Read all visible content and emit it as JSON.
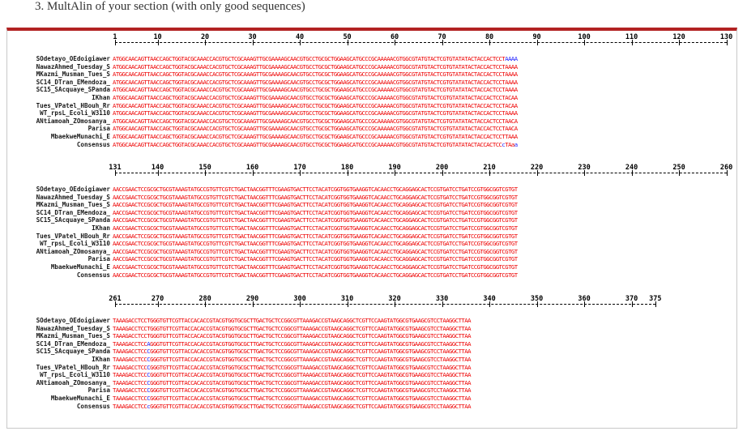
{
  "heading": "3.  MultAlin of your section (with only good sequences)",
  "colors": {
    "high_consensus": "#ee0000",
    "low_consensus": "#1a1aff",
    "border": "#b22222"
  },
  "sequence_names": [
    "SOdetayo_OEdoigiawer",
    "NawazAhmed_Tuesday_S",
    "MKazmi_Musman_Tues_S",
    "SC14_DTran_EMendoza_",
    "SC15_SAcquaye_SPanda",
    "IKhan",
    "Tues_VPatel_HBouh_Rr",
    "WT_rpsL_Ecoli_W3110",
    "ANtiamoah_ZOmosanya_",
    "Parisa",
    "MbaekweMunachi_E",
    "Consensus"
  ],
  "blocks": [
    {
      "ruler": [
        "1",
        "10",
        "20",
        "30",
        "40",
        "50",
        "60",
        "70",
        "80",
        "90",
        "100",
        "110",
        "120",
        "130"
      ],
      "rows": [
        [
          {
            "t": "ATGGCAACAGTTAACCAGCTGGTACGCAAACCACGTGCTCGCAAAGTTGCGAAAAGCAACGTGCCTGCGCTGGAAGCATGCCCGCAAAAACGTGGCGTATGTACTCGTGTATATACTACCACTCCT"
          },
          {
            "t": "AAAA",
            "b": 1
          }
        ],
        [
          {
            "t": "ATGGCAACAGTTAACCAGCTGGTACGCAAACCACGTGCTCGCAAAGTTGCGAAAAGCAACGTGCCTGCGCTGGAAGCATGCCCGCAAAAACGTGGCGTATGTACTCGTGTATATACTACCACTCCTAAAA"
          }
        ],
        [
          {
            "t": "ATGGCAACAGTTAACCAGCTGGTACGCAAACCACGTGCTCGCAAAGTTGCGAAAAGCAACGTGCCTGCGCTGGAAGCATGCCCGCAAAAACGTGGCGTATGTACTCGTGTATATACTACCACTCCTAAAA"
          }
        ],
        [
          {
            "t": "ATGGCAACAGTTAACCAGCTGGTACGCAAACCACGTGCTCGCAAAGTTGCGAAAAGCAACGTGCCTGCGCTGGAAGCATGCCCGCAAAAACGTGGCGTATGTACTCGTGTATATACTACCACTCCTAAAA"
          }
        ],
        [
          {
            "t": "ATGGCAACAGTTAACCAGCTGGTACGCAAACCACGTGCTCGCAAAGTTGCGAAAAGCAACGTGCCTGCGCTGGAAGCATGCCCGCAAAAACGTGGCGTATGTACTCGTGTATATACTACCACTCCTAAAA"
          }
        ],
        [
          {
            "t": "ATGGCAACAGTTAACCAGCTGGTACGCAAACCACGTGCTCGCAAAGTTGCGAAAAGCAACGTGCCTGCGCTGGAAGCATGCCCGCAAAAACGTGGCGTATGTACTCGTGTATATACTACCACTCCTACAA"
          }
        ],
        [
          {
            "t": "ATGGCAACAGTTAACCAGCTGGTACGCAAACCACGTGCTCGCAAAGTTGCGAAAAGCAACGTGCCTGCGCTGGAAGCATGCCCGCAAAAACGTGGCGTATGTACTCGTGTATATACTACCACTCCTACAA"
          }
        ],
        [
          {
            "t": "ATGGCAACAGTTAACCAGCTGGTACGCAAACCACGTGCTCGCAAAGTTGCGAAAAGCAACGTGCCTGCGCTGGAAGCATGCCCGCAAAAACGTGGCGTATGTACTCGTGTATATACTACCACTCCTAAAA"
          }
        ],
        [
          {
            "t": "ATGGCAACAGTTAACCAGCTGGTACGCAAACCACGTGCTCGCAAAGTTGCGAAAAGCAACGTGCCTGCGCTGGAAGCATGCCCGCAAAAACGTGGCGTATGTACTCGTGTATATACTACCACTCCTAACA"
          }
        ],
        [
          {
            "t": "ATGGCAACAGTTAACCAGCTGGTACGCAAACCACGTGCTCGCAAAGTTGCGAAAAGCAACGTGCCTGCGCTGGAAGCATGCCCGCAAAAACGTGGCGTATGTACTCGTGTATATACTACCACTCCTAACA"
          }
        ],
        [
          {
            "t": "ATGGCAACAGTTAACCAGCTGGTACGCAAACCACGTGCTCGCAAAGTTGCGAAAAGCAACGTGCCTGCGCTGGAAGCATGCCCGCAAAAACGTGGCGTATGTACTCGTGTATATACTACCACTCCTTAAA"
          }
        ],
        [
          {
            "t": "ATGGCAACAGTTAACCAGCTGGTACGCAAACCACGTGCTCGCAAAGTTGCGAAAAGCAACGTGCCTGCGCTGGAAGCATGCCCGCAAAAACGTGGCGTATGTACTCGTGTATATACTACCACTCC"
          },
          {
            "t": "c",
            "b": 1
          },
          {
            "t": "TAa",
            "b": 0
          },
          {
            "t": "a",
            "b": 1
          }
        ]
      ]
    },
    {
      "ruler": [
        "131",
        "140",
        "150",
        "160",
        "170",
        "180",
        "190",
        "200",
        "210",
        "220",
        "230",
        "240",
        "250",
        "260"
      ],
      "rows": [
        [
          {
            "t": "AACCGAACTCCGCGCTGCGTAAAGTATGCCGTGTTCGTCTGACTAACGGTTTCGAAGTGACTTCCTACATCGGTGGTGAAGGTCACAACCTGCAGGAGCACTCCGTGATCCTGATCCGTGGCGGTCGTGT"
          }
        ],
        [
          {
            "t": "AACCGAACTCCGCGCTGCGTAAAGTATGCCGTGTTCGTCTGACTAACGGTTTCGAAGTGACTTCCTACATCGGTGGTGAAGGTCACAACCTGCAGGAGCACTCCGTGATCCTGATCCGTGGCGGTCGTGT"
          }
        ],
        [
          {
            "t": "AACCGAACTCCGCGCTGCGTAAAGTATGCCGTGTTCGTCTGACTAACGGTTTCGAAGTGACTTCCTACATCGGTGGTGAAGGTCACAACCTGCAGGAGCACTCCGTGATCCTGATCCGTGGCGGTCGTGT"
          }
        ],
        [
          {
            "t": "AACCGAACTCCGCGCTGCGTAAAGTATGCCGTGTTCGTCTGACTAACGGTTTCGAAGTGACTTCCTACATCGGTGGTGAAGGTCACAACCTGCAGGAGCACTCCGTGATCCTGATCCGTGGCGGTCGTGT"
          }
        ],
        [
          {
            "t": "AACCGAACTCCGCGCTGCGTAAAGTATGCCGTGTTCGTCTGACTAACGGTTTCGAAGTGACTTCCTACATCGGTGGTGAAGGTCACAACCTGCAGGAGCACTCCGTGATCCTGATCCGTGGCGGTCGTGT"
          }
        ],
        [
          {
            "t": "AACCGAACTCCGCGCTGCGTAAAGTATGCCGTGTTCGTCTGACTAACGGTTTCGAAGTGACTTCCTACATCGGTGGTGAAGGTCACAACCTGCAGGAGCACTCCGTGATCCTGATCCGTGGCGGTCGTGT"
          }
        ],
        [
          {
            "t": "AACCGAACTCCGCGCTGCGTAAAGTATGCCGTGTTCGTCTGACTAACGGTTTCGAAGTGACTTCCTACATCGGTGGTGAAGGTCACAACCTGCAGGAGCACTCCGTGATCCTGATCCGTGGCGGTCGTGT"
          }
        ],
        [
          {
            "t": "AACCGAACTCCGCGCTGCGTAAAGTATGCCGTGTTCGTCTGACTAACGGTTTCGAAGTGACTTCCTACATCGGTGGTGAAGGTCACAACCTGCAGGAGCACTCCGTGATCCTGATCCGTGGCGGTCGTGT"
          }
        ],
        [
          {
            "t": "AACCGAACTCCGCGCTGCGTAAAGTATGCCGTGTTCGTCTGACTAACGGTTTCGAAGTGACTTCCTACATCGGTGGTGAAGGTCACAACCTGCAGGAGCACTCCGTGATCCTGATCCGTGGCGGTCGTGT"
          }
        ],
        [
          {
            "t": "AACCGAACTCCGCGCTGCGTAAAGTATGCCGTGTTCGTCTGACTAACGGTTTCGAAGTGACTTCCTACATCGGTGGTGAAGGTCACAACCTGCAGGAGCACTCCGTGATCCTGATCCGTGGCGGTCGTGT"
          }
        ],
        [
          {
            "t": "AACCGAACTCCGCGCTGCGTAAAGTATGCCGTGTTCGTCTGACTAACGGTTTCGAAGTGACTTCCTACATCGGTGGTGAAGGTCACAACCTGCAGGAGCACTCCGTGATCCTGATCCGTGGCGGTCGTGT"
          }
        ],
        [
          {
            "t": "AACCGAACTCCGCGCTGCGTAAAGTATGCCGTGTTCGTCTGACTAACGGTTTCGAAGTGACTTCCTACATCGGTGGTGAAGGTCACAACCTGCAGGAGCACTCCGTGATCCTGATCCGTGGCGGTCGTGT"
          }
        ]
      ]
    },
    {
      "ruler": [
        "261",
        "270",
        "280",
        "290",
        "300",
        "310",
        "320",
        "330",
        "340",
        "350",
        "360",
        "370",
        "375"
      ],
      "rows": [
        [
          {
            "t": "TAAAGACCTCCTGGGTGTTCGTTACCACACCGTACGTGGTGCGCTTGACTGCTCCGGCGTTAAAGACCGTAAGCAGGCTCGTTCCAAGTATGGCGTGAAGCGTCCTAAGGCTTAA"
          }
        ],
        [
          {
            "t": "TAAAGACCTCCTGGGTGTTCGTTACCACACCGTACGTGGTGCGCTTGACTGCTCCGGCGTTAAAGACCGTAAGCAGGCTCGTTCCAAGTATGGCGTGAAGCGTCCTAAGGCTTAA"
          }
        ],
        [
          {
            "t": "TAAAGACCTCCTGGGTGTTCGTTACCACACCGTACGTGGTGCGCTTGACTGCTCCGGCGTTAAAGACCGTAAGCAGGCTCGTTCCAAGTATGGCGTGAAGCGTCCTAAGGCTTAA"
          }
        ],
        [
          {
            "t": "TAAAGACCTCC"
          },
          {
            "t": "A",
            "b": 1
          },
          {
            "t": "GGGTGTTCGTTACCACACCGTACGTGGTGCGCTTGACTGCTCCGGCGTTAAAGACCGTAAGCAGGCTCGTTCCAAGTATGGCGTGAAGCGTCCTAAGGCTTAA"
          }
        ],
        [
          {
            "t": "TAAAGACCTCC"
          },
          {
            "t": "C",
            "b": 1
          },
          {
            "t": "GGGTGTTCGTTACCACACCGTACGTGGTGCGCTTGACTGCTCCGGCGTTAAAGACCGTAAGCAGGCTCGTTCCAAGTATGGCGTGAAGCGTCCTAAGGCTTAA"
          }
        ],
        [
          {
            "t": "TAAAGACCTCC"
          },
          {
            "t": "C",
            "b": 1
          },
          {
            "t": "GGGTGTTCGTTACCACACCGTACGTGGTGCGCTTGACTGCTCCGGCGTTAAAGACCGTAAGCAGGCTCGTTCCAAGTATGGCGTGAAGCGTCCTAAGGCTTAA"
          }
        ],
        [
          {
            "t": "TAAAGACCTCC"
          },
          {
            "t": "C",
            "b": 1
          },
          {
            "t": "GGGTGTTCGTTACCACACCGTACGTGGTGCGCTTGACTGCTCCGGCGTTAAAGACCGTAAGCAGGCTCGTTCCAAGTATGGCGTGAAGCGTCCTAAGGCTTAA"
          }
        ],
        [
          {
            "t": "TAAAGACCTCC"
          },
          {
            "t": "C",
            "b": 1
          },
          {
            "t": "GGGTGTTCGTTACCACACCGTACGTGGTGCGCTTGACTGCTCCGGCGTTAAAGACCGTAAGCAGGCTCGTTCCAAGTATGGCGTGAAGCGTCCTAAGGCTTAA"
          }
        ],
        [
          {
            "t": "TAAAGACCTCC"
          },
          {
            "t": "C",
            "b": 1
          },
          {
            "t": "GGGTGTTCGTTACCACACCGTACGTGGTGCGCTTGACTGCTCCGGCGTTAAAGACCGTAAGCAGGCTCGTTCCAAGTATGGCGTGAAGCGTCCTAAGGCTTAA"
          }
        ],
        [
          {
            "t": "TAAAGACCTCC"
          },
          {
            "t": "C",
            "b": 1
          },
          {
            "t": "GGGTGTTCGTTACCACACCGTACGTGGTGCGCTTGACTGCTCCGGCGTTAAAGACCGTAAGCAGGCTCGTTCCAAGTATGGCGTGAAGCGTCCTAAGGCTTAA"
          }
        ],
        [
          {
            "t": "TAAAGACCTCC"
          },
          {
            "t": "C",
            "b": 1
          },
          {
            "t": "GGGTGTTCGTTACCACACCGTACGTGGTGCGCTTGACTGCTCCGGCGTTAAAGACCGTAAGCAGGCTCGTTCCAAGTATGGCGTGAAGCGTCCTAAGGCTTAA"
          }
        ],
        [
          {
            "t": "TAAAGACCTCC"
          },
          {
            "t": "c",
            "b": 1
          },
          {
            "t": "GGGTGTTCGTTACCACACCGTACGTGGTGCGCTTGACTGCTCCGGCGTTAAAGACCGTAAGCAGGCTCGTTCCAAGTATGGCGTGAAGCGTCCTAAGGCTTAA"
          }
        ]
      ]
    }
  ]
}
